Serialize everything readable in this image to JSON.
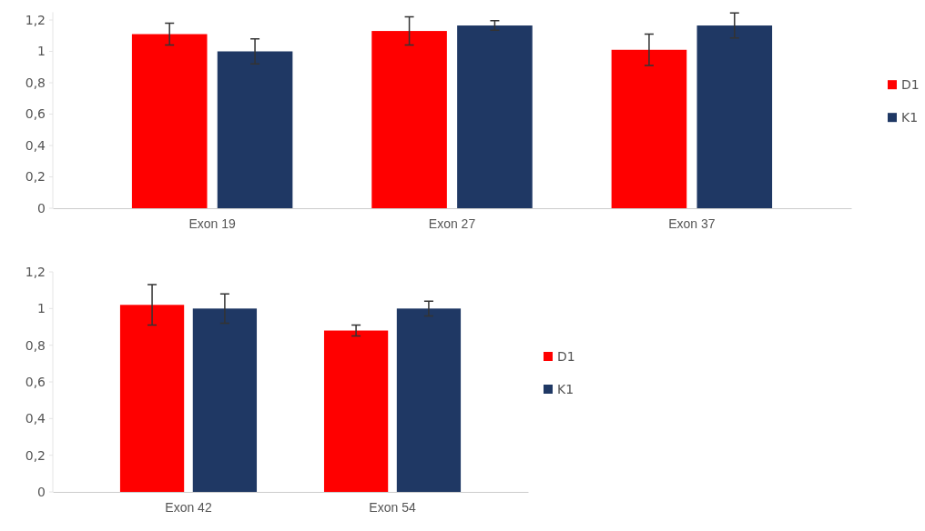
{
  "chart_data": [
    {
      "type": "bar",
      "categories": [
        "Exon 19",
        "Exon 27",
        "Exon 37"
      ],
      "ylim": [
        0,
        1.25
      ],
      "yticks": [
        {
          "value": 0,
          "label": "0"
        },
        {
          "value": 0.2,
          "label": "0,2"
        },
        {
          "value": 0.4,
          "label": "0,4"
        },
        {
          "value": 0.6,
          "label": "0,6"
        },
        {
          "value": 0.8,
          "label": "0,8"
        },
        {
          "value": 1,
          "label": "1"
        },
        {
          "value": 1.2,
          "label": "1,2"
        }
      ],
      "grid": false,
      "legend": "right",
      "series": [
        {
          "name": "D1",
          "color": "#ff0000",
          "values": [
            1.11,
            1.13,
            1.01
          ],
          "errors": [
            0.07,
            0.09,
            0.1
          ]
        },
        {
          "name": "K1",
          "color": "#1f3864",
          "values": [
            1.0,
            1.165,
            1.165
          ],
          "errors": [
            0.08,
            0.03,
            0.08
          ]
        }
      ]
    },
    {
      "type": "bar",
      "categories": [
        "Exon 42",
        "Exon 54"
      ],
      "ylim": [
        0,
        1.2
      ],
      "yticks": [
        {
          "value": 0,
          "label": "0"
        },
        {
          "value": 0.2,
          "label": "0,2"
        },
        {
          "value": 0.4,
          "label": "0,4"
        },
        {
          "value": 0.6,
          "label": "0,6"
        },
        {
          "value": 0.8,
          "label": "0,8"
        },
        {
          "value": 1,
          "label": "1"
        },
        {
          "value": 1.2,
          "label": "1,2"
        }
      ],
      "grid": false,
      "legend": "right",
      "series": [
        {
          "name": "D1",
          "color": "#ff0000",
          "values": [
            1.02,
            0.88
          ],
          "errors": [
            0.11,
            0.03
          ]
        },
        {
          "name": "K1",
          "color": "#1f3864",
          "values": [
            1.0,
            1.0
          ],
          "errors": [
            0.08,
            0.04
          ]
        }
      ]
    }
  ]
}
